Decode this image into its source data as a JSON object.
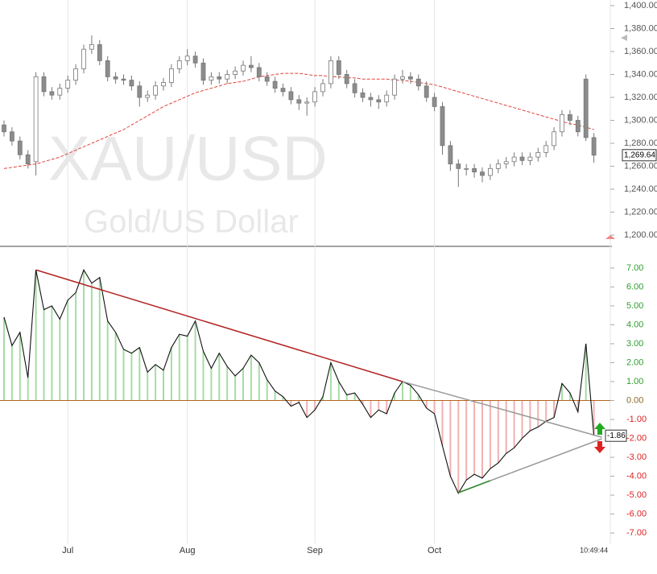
{
  "chart_data": [
    {
      "type": "candlestick",
      "title": "XAU/USD",
      "subtitle": "Gold/US Dollar",
      "categories": [
        null,
        null,
        null,
        null,
        null,
        null,
        null,
        null,
        "Jul",
        null,
        null,
        null,
        null,
        null,
        null,
        null,
        null,
        null,
        null,
        null,
        null,
        null,
        null,
        "Aug",
        null,
        null,
        null,
        null,
        null,
        null,
        null,
        null,
        null,
        null,
        null,
        null,
        null,
        null,
        null,
        "Sep",
        null,
        null,
        null,
        null,
        null,
        null,
        null,
        null,
        null,
        null,
        null,
        null,
        null,
        null,
        "Oct",
        null,
        null,
        null,
        null,
        null,
        null,
        null,
        null,
        null,
        null,
        null,
        null,
        null,
        null,
        null,
        null,
        null,
        null,
        null,
        "10:49:44"
      ],
      "open": [
        1296,
        1290,
        1282,
        1270,
        1264,
        1338,
        1325,
        1322,
        1328,
        1335,
        1345,
        1362,
        1366,
        1352,
        1338,
        1336,
        1335,
        1330,
        1320,
        1322,
        1330,
        1333,
        1345,
        1352,
        1356,
        1350,
        1335,
        1338,
        1336,
        1340,
        1343,
        1348,
        1346,
        1338,
        1334,
        1328,
        1325,
        1318,
        1315,
        1316,
        1325,
        1332,
        1352,
        1340,
        1332,
        1324,
        1320,
        1318,
        1316,
        1322,
        1336,
        1338,
        1336,
        1330,
        1320,
        1312,
        1278,
        1262,
        1258,
        1258,
        1255,
        1252,
        1258,
        1262,
        1264,
        1268,
        1265,
        1268,
        1272,
        1278,
        1290,
        1305,
        1300,
        1336,
        1285
      ],
      "high": [
        1300,
        1294,
        1286,
        1274,
        1342,
        1342,
        1329,
        1332,
        1339,
        1349,
        1366,
        1374,
        1370,
        1356,
        1342,
        1340,
        1339,
        1334,
        1326,
        1334,
        1337,
        1349,
        1356,
        1362,
        1360,
        1354,
        1342,
        1342,
        1344,
        1347,
        1352,
        1356,
        1350,
        1342,
        1338,
        1332,
        1329,
        1322,
        1320,
        1329,
        1336,
        1356,
        1356,
        1344,
        1336,
        1328,
        1324,
        1322,
        1326,
        1340,
        1344,
        1342,
        1340,
        1334,
        1324,
        1316,
        1282,
        1266,
        1262,
        1262,
        1259,
        1262,
        1266,
        1268,
        1272,
        1272,
        1272,
        1276,
        1282,
        1294,
        1309,
        1309,
        1304,
        1340,
        1289
      ],
      "low": [
        1286,
        1278,
        1266,
        1258,
        1252,
        1321,
        1318,
        1318,
        1324,
        1331,
        1341,
        1358,
        1348,
        1334,
        1332,
        1331,
        1326,
        1312,
        1316,
        1318,
        1326,
        1329,
        1341,
        1348,
        1346,
        1331,
        1331,
        1332,
        1332,
        1336,
        1339,
        1342,
        1334,
        1330,
        1324,
        1321,
        1314,
        1309,
        1304,
        1312,
        1321,
        1328,
        1336,
        1328,
        1320,
        1316,
        1312,
        1310,
        1312,
        1318,
        1332,
        1332,
        1326,
        1316,
        1308,
        1270,
        1256,
        1242,
        1252,
        1250,
        1246,
        1248,
        1254,
        1258,
        1260,
        1261,
        1261,
        1264,
        1268,
        1274,
        1286,
        1296,
        1286,
        1282,
        1263
      ],
      "close": [
        1290,
        1282,
        1270,
        1262,
        1338,
        1325,
        1322,
        1328,
        1335,
        1345,
        1362,
        1366,
        1352,
        1338,
        1336,
        1335,
        1330,
        1320,
        1322,
        1330,
        1333,
        1345,
        1352,
        1356,
        1350,
        1335,
        1338,
        1336,
        1340,
        1343,
        1348,
        1346,
        1338,
        1334,
        1328,
        1325,
        1318,
        1315,
        1316,
        1325,
        1332,
        1352,
        1340,
        1332,
        1324,
        1320,
        1318,
        1316,
        1322,
        1336,
        1338,
        1336,
        1330,
        1320,
        1312,
        1278,
        1262,
        1258,
        1258,
        1255,
        1252,
        1258,
        1262,
        1264,
        1268,
        1265,
        1268,
        1272,
        1278,
        1290,
        1305,
        1300,
        1290,
        1285,
        1269.64
      ],
      "up_color": "#ffffff",
      "down_color": "#8c8c8c",
      "moving_average": {
        "color": "#e0443a",
        "values": [
          1258,
          1259,
          1260,
          1261,
          1262,
          1264,
          1266,
          1268,
          1271,
          1274,
          1277,
          1280,
          1283,
          1286,
          1289,
          1292,
          1296,
          1300,
          1304,
          1308,
          1312,
          1315,
          1318,
          1321,
          1324,
          1326,
          1328,
          1330,
          1332,
          1333,
          1334,
          1336,
          1338,
          1339,
          1340,
          1341,
          1341,
          1341,
          1340,
          1339,
          1339,
          1338,
          1338,
          1337,
          1337,
          1336,
          1336,
          1336,
          1336,
          1335,
          1335,
          1334,
          1333,
          1332,
          1331,
          1329,
          1327,
          1325,
          1323,
          1321,
          1319,
          1317,
          1315,
          1313,
          1311,
          1309,
          1307,
          1305,
          1303,
          1301,
          1299,
          1297,
          1296,
          1294,
          1292
        ]
      },
      "ylim": [
        1194.4,
        1404.9
      ],
      "yticks": [
        {
          "value": 1200,
          "label": "1,200.00"
        },
        {
          "value": 1220,
          "label": "1,220.00"
        },
        {
          "value": 1240,
          "label": "1,240.00"
        },
        {
          "value": 1260,
          "label": "1,260.00"
        },
        {
          "value": 1280,
          "label": "1,280.00"
        },
        {
          "value": 1300,
          "label": "1,300.00"
        },
        {
          "value": 1320,
          "label": "1,320.00"
        },
        {
          "value": 1340,
          "label": "1,340.00"
        },
        {
          "value": 1360,
          "label": "1,360.00"
        },
        {
          "value": 1380,
          "label": "1,380.00"
        },
        {
          "value": 1400,
          "label": "1,400.00"
        }
      ],
      "last_value": {
        "value": 1269.64,
        "label": "1,269.64"
      }
    },
    {
      "type": "oscillator",
      "values": [
        4.4,
        2.9,
        3.6,
        1.2,
        6.9,
        4.8,
        5.0,
        4.3,
        5.3,
        5.7,
        6.9,
        6.2,
        6.5,
        4.2,
        3.6,
        2.7,
        2.5,
        2.8,
        1.5,
        1.9,
        1.6,
        2.8,
        3.5,
        3.4,
        4.2,
        2.6,
        1.7,
        2.5,
        1.8,
        1.3,
        1.7,
        2.4,
        2.0,
        1.1,
        0.5,
        0.2,
        -0.3,
        -0.1,
        -0.9,
        -0.5,
        0.2,
        2.0,
        1.0,
        0.3,
        0.4,
        -0.2,
        -0.9,
        -0.5,
        -0.7,
        0.4,
        1.0,
        0.8,
        0.3,
        -0.4,
        -0.7,
        -2.4,
        -4.0,
        -4.9,
        -4.2,
        -3.9,
        -4.1,
        -3.6,
        -3.3,
        -2.8,
        -2.5,
        -2.0,
        -1.6,
        -1.4,
        -1.1,
        -0.9,
        0.9,
        0.4,
        -0.6,
        3.0,
        -1.86
      ],
      "positive_color": "#a6dca6",
      "negative_color": "#f2b0b0",
      "line_color": "#111111",
      "zero_color": "#b5651d",
      "ylim": [
        -7.55,
        8.06
      ],
      "yticks": [
        {
          "value": -7,
          "label": "-7.00"
        },
        {
          "value": -6,
          "label": "-6.00"
        },
        {
          "value": -5,
          "label": "-5.00"
        },
        {
          "value": -4,
          "label": "-4.00"
        },
        {
          "value": -3,
          "label": "-3.00"
        },
        {
          "value": -2,
          "label": "-2.00"
        },
        {
          "value": -1,
          "label": "-1.00"
        },
        {
          "value": 0,
          "label": "0.00"
        },
        {
          "value": 1,
          "label": "1.00"
        },
        {
          "value": 2,
          "label": "2.00"
        },
        {
          "value": 3,
          "label": "3.00"
        },
        {
          "value": 4,
          "label": "4.00"
        },
        {
          "value": 5,
          "label": "5.00"
        },
        {
          "value": 6,
          "label": "6.00"
        },
        {
          "value": 7,
          "label": "7.00"
        }
      ],
      "last_value": {
        "value": -1.86,
        "label": "-1.86"
      },
      "trendlines": [
        {
          "color": "#b22222",
          "points": [
            [
              4,
              6.9
            ],
            [
              50,
              1.0
            ]
          ]
        },
        {
          "color": "#9a9a9a",
          "points": [
            [
              50,
              1.0
            ],
            [
              75,
              -1.94
            ]
          ]
        },
        {
          "color": "#9a9a9a",
          "points": [
            [
              57,
              -4.87
            ],
            [
              75,
              -2.02
            ]
          ]
        },
        {
          "color": "#2e8b2e",
          "points": [
            [
              57,
              -4.87
            ],
            [
              61,
              -4.23
            ]
          ]
        }
      ]
    }
  ]
}
